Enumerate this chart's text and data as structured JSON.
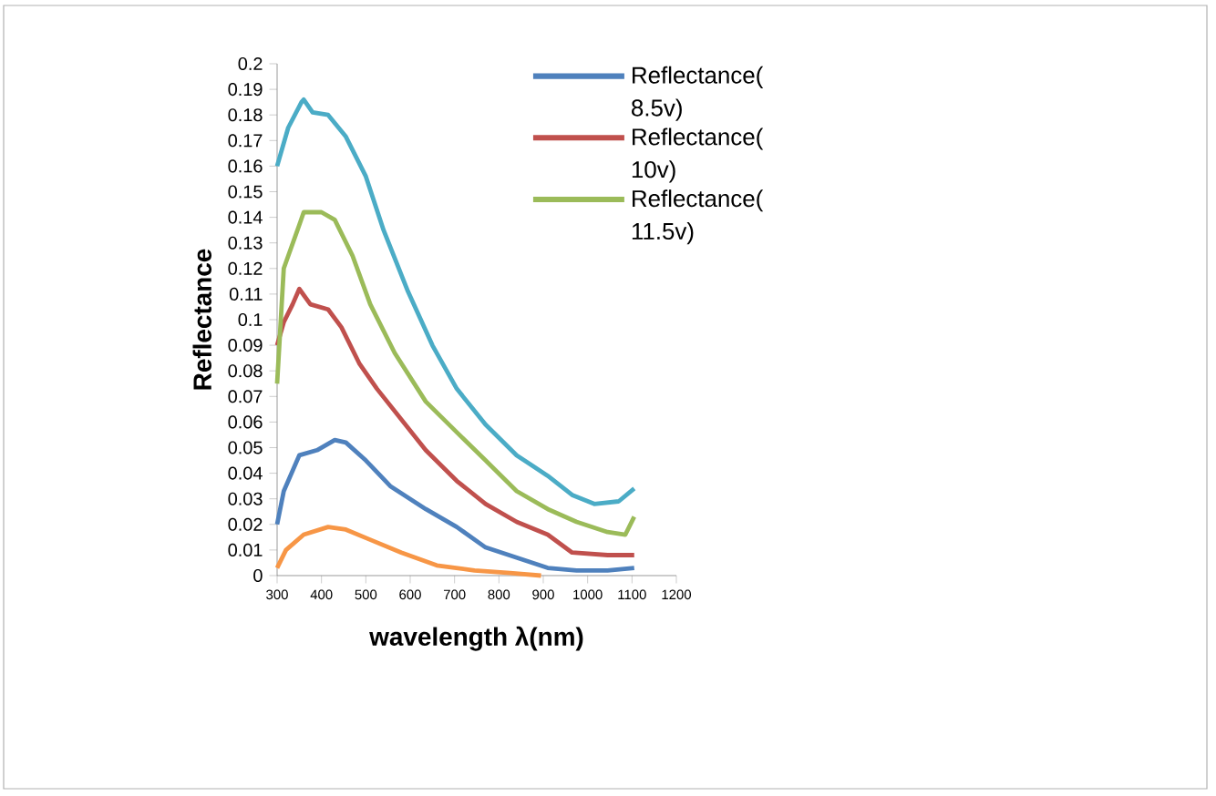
{
  "chart_data": {
    "type": "line",
    "xlabel": "wavelength λ(nm)",
    "ylabel": "Reflectance",
    "xlim": [
      300,
      1200
    ],
    "ylim": [
      0,
      0.2
    ],
    "xticks": [
      300,
      400,
      500,
      600,
      700,
      800,
      900,
      1000,
      1100,
      1200
    ],
    "yticks": [
      0,
      0.01,
      0.02,
      0.03,
      0.04,
      0.05,
      0.06,
      0.07,
      0.08,
      0.09,
      0.1,
      0.11,
      0.12,
      0.13,
      0.14,
      0.15,
      0.16,
      0.17,
      0.18,
      0.19,
      0.2
    ],
    "legend": "top right",
    "series": [
      {
        "name": "Reflectance( 8.5v)",
        "color": "#4f81bd",
        "x": [
          300,
          315,
          350,
          390,
          430,
          455,
          500,
          555,
          635,
          705,
          770,
          840,
          910,
          975,
          1045,
          1105
        ],
        "values": [
          0.02,
          0.033,
          0.047,
          0.049,
          0.053,
          0.052,
          0.045,
          0.035,
          0.026,
          0.019,
          0.011,
          0.007,
          0.003,
          0.002,
          0.002,
          0.003
        ]
      },
      {
        "name": "Reflectance( 10v)",
        "color": "#c0504d",
        "x": [
          300,
          315,
          335,
          350,
          375,
          415,
          445,
          485,
          525,
          580,
          635,
          705,
          770,
          840,
          910,
          965,
          1045,
          1105
        ],
        "values": [
          0.09,
          0.099,
          0.106,
          0.112,
          0.106,
          0.104,
          0.097,
          0.083,
          0.073,
          0.061,
          0.049,
          0.037,
          0.028,
          0.021,
          0.016,
          0.009,
          0.008,
          0.008
        ]
      },
      {
        "name": "Reflectance( 11.5v)",
        "color": "#9bbb59",
        "x": [
          300,
          315,
          350,
          360,
          400,
          430,
          470,
          510,
          565,
          635,
          705,
          770,
          840,
          910,
          975,
          1045,
          1085,
          1105
        ],
        "values": [
          0.075,
          0.12,
          0.137,
          0.142,
          0.142,
          0.139,
          0.125,
          0.106,
          0.087,
          0.068,
          0.056,
          0.045,
          0.033,
          0.026,
          0.021,
          0.017,
          0.016,
          0.023
        ]
      },
      {
        "color": "#4bacc6",
        "x": [
          300,
          325,
          355,
          360,
          380,
          415,
          455,
          500,
          540,
          595,
          650,
          705,
          770,
          840,
          910,
          965,
          1015,
          1070,
          1105
        ],
        "values": [
          0.16,
          0.175,
          0.185,
          0.186,
          0.181,
          0.18,
          0.1715,
          0.156,
          0.135,
          0.111,
          0.09,
          0.073,
          0.059,
          0.047,
          0.039,
          0.0315,
          0.028,
          0.029,
          0.034
        ]
      },
      {
        "color": "#f79646",
        "x": [
          300,
          320,
          360,
          415,
          455,
          510,
          580,
          660,
          745,
          825,
          895
        ],
        "values": [
          0.003,
          0.01,
          0.016,
          0.019,
          0.018,
          0.014,
          0.009,
          0.004,
          0.002,
          0.001,
          0
        ]
      }
    ]
  }
}
